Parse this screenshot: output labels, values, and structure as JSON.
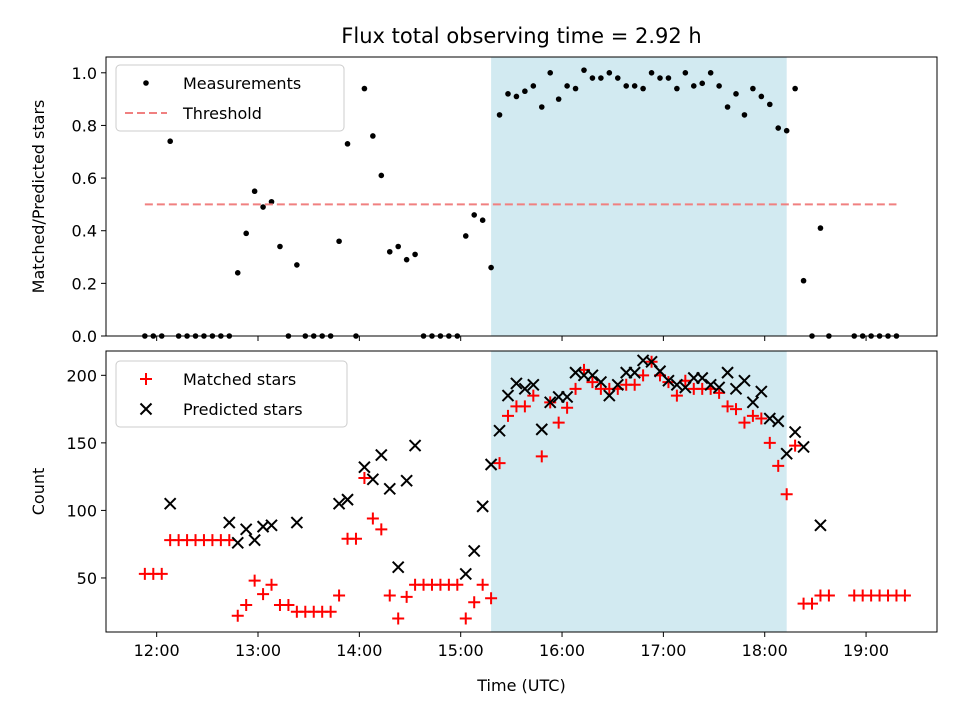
{
  "chart_data": [
    {
      "type": "scatter",
      "title": "Flux total observing time = 2.92 h",
      "xlabel": "",
      "ylabel": "Matched/Predicted stars",
      "xlim": [
        "11:30",
        "19:42"
      ],
      "ylim": [
        0,
        1.06
      ],
      "x_ticks": [
        "12:00",
        "13:00",
        "14:00",
        "15:00",
        "16:00",
        "17:00",
        "18:00",
        "19:00"
      ],
      "x_ticklabels_shown": false,
      "y_ticks": [
        0.0,
        0.2,
        0.4,
        0.6,
        0.8,
        1.0
      ],
      "y_ticklabels": [
        "0.0",
        "0.2",
        "0.4",
        "0.6",
        "0.8",
        "1.0"
      ],
      "grid": false,
      "legend_position": "upper-left",
      "shaded_region": {
        "x": [
          "15:18",
          "18:13"
        ],
        "color": "#add8e6"
      },
      "series": [
        {
          "name": "Measurements",
          "marker": "dot",
          "color": "#000000",
          "points": [
            [
              "11:53",
              0.0
            ],
            [
              "11:58",
              0.0
            ],
            [
              "12:03",
              0.0
            ],
            [
              "12:08",
              0.74
            ],
            [
              "12:13",
              0.0
            ],
            [
              "12:18",
              0.0
            ],
            [
              "12:23",
              0.0
            ],
            [
              "12:28",
              0.0
            ],
            [
              "12:33",
              0.0
            ],
            [
              "12:38",
              0.0
            ],
            [
              "12:43",
              0.0
            ],
            [
              "12:48",
              0.24
            ],
            [
              "12:53",
              0.39
            ],
            [
              "12:58",
              0.55
            ],
            [
              "13:03",
              0.49
            ],
            [
              "13:08",
              0.51
            ],
            [
              "13:13",
              0.34
            ],
            [
              "13:18",
              0.0
            ],
            [
              "13:23",
              0.27
            ],
            [
              "13:28",
              0.0
            ],
            [
              "13:33",
              0.0
            ],
            [
              "13:38",
              0.0
            ],
            [
              "13:43",
              0.0
            ],
            [
              "13:48",
              0.36
            ],
            [
              "13:53",
              0.73
            ],
            [
              "13:58",
              0.0
            ],
            [
              "14:03",
              0.94
            ],
            [
              "14:08",
              0.76
            ],
            [
              "14:13",
              0.61
            ],
            [
              "14:18",
              0.32
            ],
            [
              "14:23",
              0.34
            ],
            [
              "14:28",
              0.29
            ],
            [
              "14:33",
              0.31
            ],
            [
              "14:38",
              0.0
            ],
            [
              "14:43",
              0.0
            ],
            [
              "14:48",
              0.0
            ],
            [
              "14:53",
              0.0
            ],
            [
              "14:58",
              0.0
            ],
            [
              "15:03",
              0.38
            ],
            [
              "15:08",
              0.46
            ],
            [
              "15:13",
              0.44
            ],
            [
              "15:18",
              0.26
            ],
            [
              "15:23",
              0.84
            ],
            [
              "15:28",
              0.92
            ],
            [
              "15:33",
              0.91
            ],
            [
              "15:38",
              0.93
            ],
            [
              "15:43",
              0.95
            ],
            [
              "15:48",
              0.87
            ],
            [
              "15:53",
              1.0
            ],
            [
              "15:58",
              0.9
            ],
            [
              "16:03",
              0.95
            ],
            [
              "16:08",
              0.94
            ],
            [
              "16:13",
              1.01
            ],
            [
              "16:18",
              0.98
            ],
            [
              "16:23",
              0.98
            ],
            [
              "16:28",
              1.0
            ],
            [
              "16:33",
              0.98
            ],
            [
              "16:38",
              0.95
            ],
            [
              "16:43",
              0.95
            ],
            [
              "16:48",
              0.94
            ],
            [
              "16:53",
              1.0
            ],
            [
              "16:58",
              0.98
            ],
            [
              "17:03",
              0.98
            ],
            [
              "17:08",
              0.94
            ],
            [
              "17:13",
              1.0
            ],
            [
              "17:18",
              0.95
            ],
            [
              "17:23",
              0.96
            ],
            [
              "17:28",
              1.0
            ],
            [
              "17:33",
              0.95
            ],
            [
              "17:38",
              0.87
            ],
            [
              "17:43",
              0.92
            ],
            [
              "17:48",
              0.84
            ],
            [
              "17:53",
              0.94
            ],
            [
              "17:58",
              0.91
            ],
            [
              "18:03",
              0.88
            ],
            [
              "18:08",
              0.79
            ],
            [
              "18:13",
              0.78
            ],
            [
              "18:18",
              0.94
            ],
            [
              "18:23",
              0.21
            ],
            [
              "18:28",
              0.0
            ],
            [
              "18:33",
              0.41
            ],
            [
              "18:38",
              0.0
            ],
            [
              "18:53",
              0.0
            ],
            [
              "18:58",
              0.0
            ],
            [
              "19:03",
              0.0
            ],
            [
              "19:08",
              0.0
            ],
            [
              "19:13",
              0.0
            ],
            [
              "19:18",
              0.0
            ]
          ]
        },
        {
          "name": "Threshold",
          "marker": "dashed-line",
          "color": "#f08080",
          "points": [
            [
              "11:53",
              0.5
            ],
            [
              "19:18",
              0.5
            ]
          ]
        }
      ]
    },
    {
      "type": "scatter",
      "title": "",
      "xlabel": "Time (UTC)",
      "ylabel": "Count",
      "xlim": [
        "11:30",
        "19:42"
      ],
      "ylim": [
        10,
        218
      ],
      "x_ticks": [
        "12:00",
        "13:00",
        "14:00",
        "15:00",
        "16:00",
        "17:00",
        "18:00",
        "19:00"
      ],
      "x_ticklabels": [
        "12:00",
        "13:00",
        "14:00",
        "15:00",
        "16:00",
        "17:00",
        "18:00",
        "19:00"
      ],
      "y_ticks": [
        50,
        100,
        150,
        200
      ],
      "y_ticklabels": [
        "50",
        "100",
        "150",
        "200"
      ],
      "grid": false,
      "legend_position": "upper-left",
      "shaded_region": {
        "x": [
          "15:18",
          "18:13"
        ],
        "color": "#add8e6"
      },
      "series": [
        {
          "name": "Matched stars",
          "marker": "plus",
          "color": "#ff0000",
          "points": [
            [
              "11:53",
              53
            ],
            [
              "11:58",
              53
            ],
            [
              "12:03",
              53
            ],
            [
              "12:08",
              78
            ],
            [
              "12:13",
              78
            ],
            [
              "12:18",
              78
            ],
            [
              "12:23",
              78
            ],
            [
              "12:28",
              78
            ],
            [
              "12:33",
              78
            ],
            [
              "12:38",
              78
            ],
            [
              "12:43",
              78
            ],
            [
              "12:48",
              22
            ],
            [
              "12:53",
              30
            ],
            [
              "12:58",
              48
            ],
            [
              "13:03",
              38
            ],
            [
              "13:08",
              45
            ],
            [
              "13:13",
              30
            ],
            [
              "13:18",
              30
            ],
            [
              "13:23",
              25
            ],
            [
              "13:28",
              25
            ],
            [
              "13:33",
              25
            ],
            [
              "13:38",
              25
            ],
            [
              "13:43",
              25
            ],
            [
              "13:48",
              37
            ],
            [
              "13:53",
              79
            ],
            [
              "13:58",
              79
            ],
            [
              "14:03",
              124
            ],
            [
              "14:08",
              94
            ],
            [
              "14:13",
              86
            ],
            [
              "14:18",
              37
            ],
            [
              "14:23",
              20
            ],
            [
              "14:28",
              36
            ],
            [
              "14:33",
              45
            ],
            [
              "14:38",
              45
            ],
            [
              "14:43",
              45
            ],
            [
              "14:48",
              45
            ],
            [
              "14:53",
              45
            ],
            [
              "14:58",
              45
            ],
            [
              "15:03",
              20
            ],
            [
              "15:08",
              32
            ],
            [
              "15:13",
              45
            ],
            [
              "15:18",
              35
            ],
            [
              "15:23",
              135
            ],
            [
              "15:28",
              170
            ],
            [
              "15:33",
              177
            ],
            [
              "15:38",
              177
            ],
            [
              "15:43",
              185
            ],
            [
              "15:48",
              140
            ],
            [
              "15:53",
              180
            ],
            [
              "15:58",
              165
            ],
            [
              "16:03",
              176
            ],
            [
              "16:08",
              190
            ],
            [
              "16:13",
              204
            ],
            [
              "16:18",
              195
            ],
            [
              "16:23",
              190
            ],
            [
              "16:28",
              190
            ],
            [
              "16:33",
              190
            ],
            [
              "16:38",
              193
            ],
            [
              "16:43",
              193
            ],
            [
              "16:48",
              200
            ],
            [
              "16:53",
              210
            ],
            [
              "16:58",
              200
            ],
            [
              "17:03",
              195
            ],
            [
              "17:08",
              185
            ],
            [
              "17:13",
              196
            ],
            [
              "17:18",
              190
            ],
            [
              "17:23",
              190
            ],
            [
              "17:28",
              190
            ],
            [
              "17:33",
              187
            ],
            [
              "17:38",
              177
            ],
            [
              "17:43",
              175
            ],
            [
              "17:48",
              165
            ],
            [
              "17:53",
              170
            ],
            [
              "17:58",
              168
            ],
            [
              "18:03",
              150
            ],
            [
              "18:08",
              133
            ],
            [
              "18:13",
              112
            ],
            [
              "18:18",
              148
            ],
            [
              "18:23",
              31
            ],
            [
              "18:28",
              31
            ],
            [
              "18:33",
              37
            ],
            [
              "18:38",
              37
            ],
            [
              "18:53",
              37
            ],
            [
              "18:58",
              37
            ],
            [
              "19:03",
              37
            ],
            [
              "19:08",
              37
            ],
            [
              "19:13",
              37
            ],
            [
              "19:18",
              37
            ],
            [
              "19:23",
              37
            ]
          ]
        },
        {
          "name": "Predicted stars",
          "marker": "x",
          "color": "#000000",
          "points": [
            [
              "12:08",
              105
            ],
            [
              "12:43",
              91
            ],
            [
              "12:48",
              76
            ],
            [
              "12:53",
              86
            ],
            [
              "12:58",
              78
            ],
            [
              "13:03",
              88
            ],
            [
              "13:08",
              89
            ],
            [
              "13:23",
              91
            ],
            [
              "13:48",
              105
            ],
            [
              "13:53",
              108
            ],
            [
              "14:03",
              132
            ],
            [
              "14:08",
              123
            ],
            [
              "14:13",
              141
            ],
            [
              "14:18",
              116
            ],
            [
              "14:23",
              58
            ],
            [
              "14:28",
              122
            ],
            [
              "14:33",
              148
            ],
            [
              "15:03",
              53
            ],
            [
              "15:08",
              70
            ],
            [
              "15:13",
              103
            ],
            [
              "15:18",
              134
            ],
            [
              "15:23",
              159
            ],
            [
              "15:28",
              185
            ],
            [
              "15:33",
              194
            ],
            [
              "15:38",
              190
            ],
            [
              "15:43",
              193
            ],
            [
              "15:48",
              160
            ],
            [
              "15:53",
              180
            ],
            [
              "15:58",
              184
            ],
            [
              "16:03",
              184
            ],
            [
              "16:08",
              202
            ],
            [
              "16:13",
              200
            ],
            [
              "16:18",
              200
            ],
            [
              "16:23",
              195
            ],
            [
              "16:28",
              185
            ],
            [
              "16:33",
              193
            ],
            [
              "16:38",
              202
            ],
            [
              "16:43",
              202
            ],
            [
              "16:48",
              211
            ],
            [
              "16:53",
              210
            ],
            [
              "16:58",
              203
            ],
            [
              "17:03",
              196
            ],
            [
              "17:08",
              193
            ],
            [
              "17:13",
              191
            ],
            [
              "17:18",
              198
            ],
            [
              "17:23",
              198
            ],
            [
              "17:28",
              193
            ],
            [
              "17:33",
              191
            ],
            [
              "17:38",
              202
            ],
            [
              "17:43",
              190
            ],
            [
              "17:48",
              196
            ],
            [
              "17:53",
              180
            ],
            [
              "17:58",
              188
            ],
            [
              "18:03",
              168
            ],
            [
              "18:08",
              166
            ],
            [
              "18:13",
              142
            ],
            [
              "18:18",
              158
            ],
            [
              "18:23",
              147
            ],
            [
              "18:33",
              89
            ]
          ]
        }
      ]
    }
  ]
}
